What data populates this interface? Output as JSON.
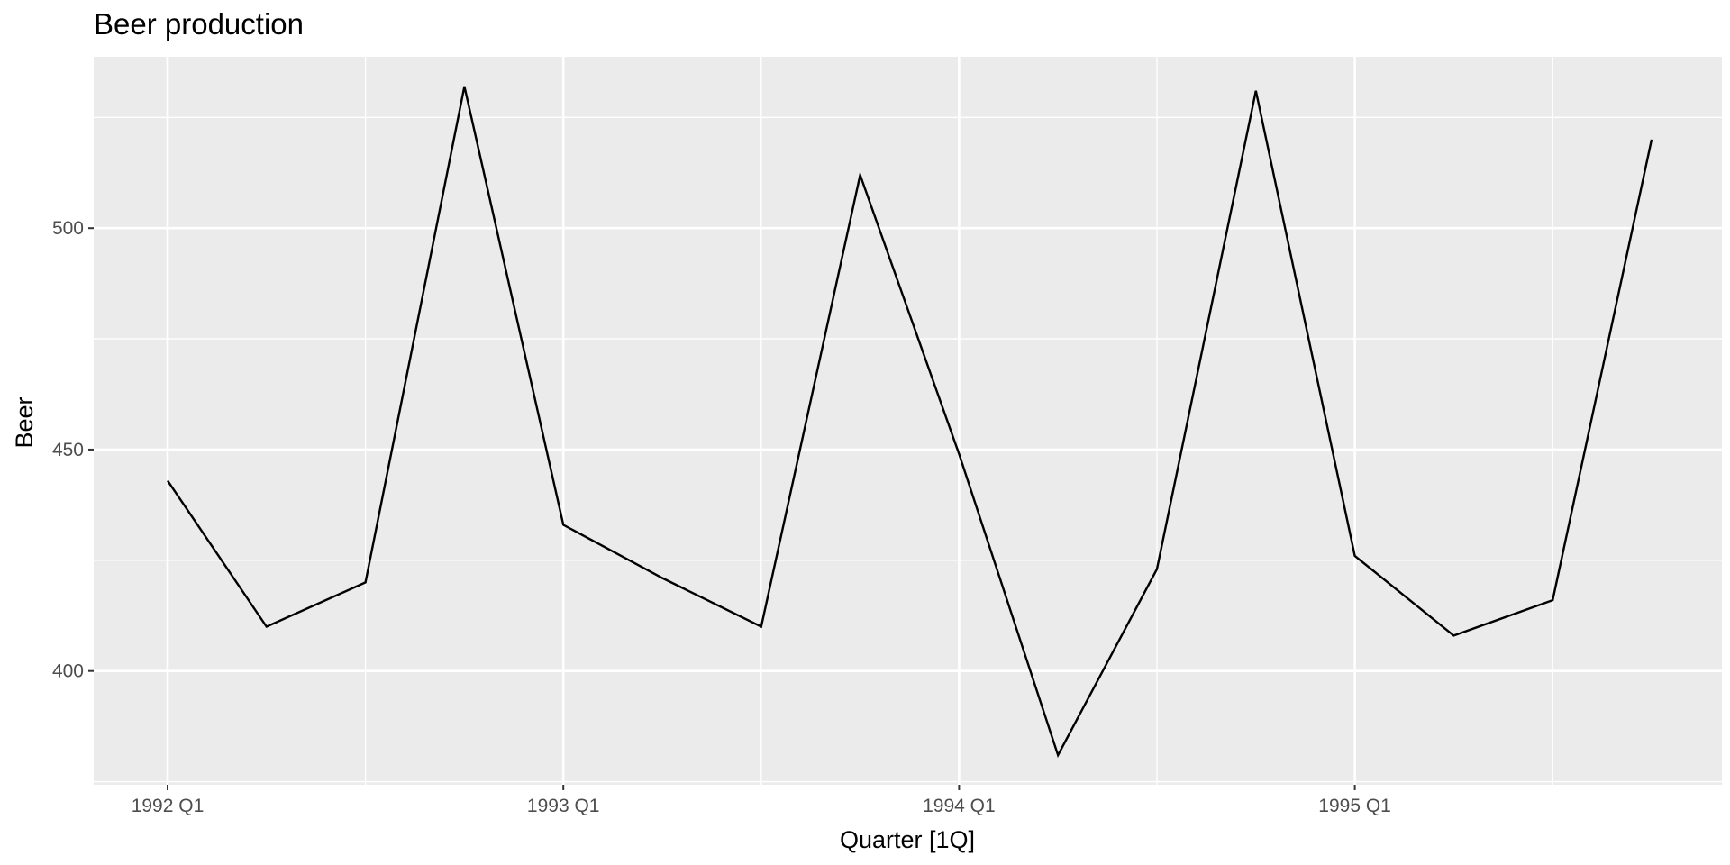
{
  "chart_data": {
    "type": "line",
    "title": "Beer production",
    "xlabel": "Quarter [1Q]",
    "ylabel": "Beer",
    "x": [
      "1992 Q1",
      "1992 Q2",
      "1992 Q3",
      "1992 Q4",
      "1993 Q1",
      "1993 Q2",
      "1993 Q3",
      "1993 Q4",
      "1994 Q1",
      "1994 Q2",
      "1994 Q3",
      "1994 Q4",
      "1995 Q1",
      "1995 Q2",
      "1995 Q3",
      "1995 Q4"
    ],
    "series": [
      {
        "values": [
          443,
          410,
          420,
          532,
          433,
          421,
          410,
          512,
          449,
          381,
          423,
          531,
          426,
          408,
          416,
          520
        ],
        "color": "#000000"
      }
    ],
    "x_ticks": [
      "1992 Q1",
      "1993 Q1",
      "1994 Q1",
      "1995 Q1"
    ],
    "y_ticks": [
      400,
      450,
      500
    ],
    "y_minor_ticks": [
      375,
      425,
      475,
      525
    ],
    "ylim": [
      374.3,
      538.7
    ],
    "xlim": [
      "1992 Q1",
      "1995 Q4"
    ],
    "grid": true,
    "panel_background": "#ebebeb",
    "grid_color": "#ffffff"
  }
}
